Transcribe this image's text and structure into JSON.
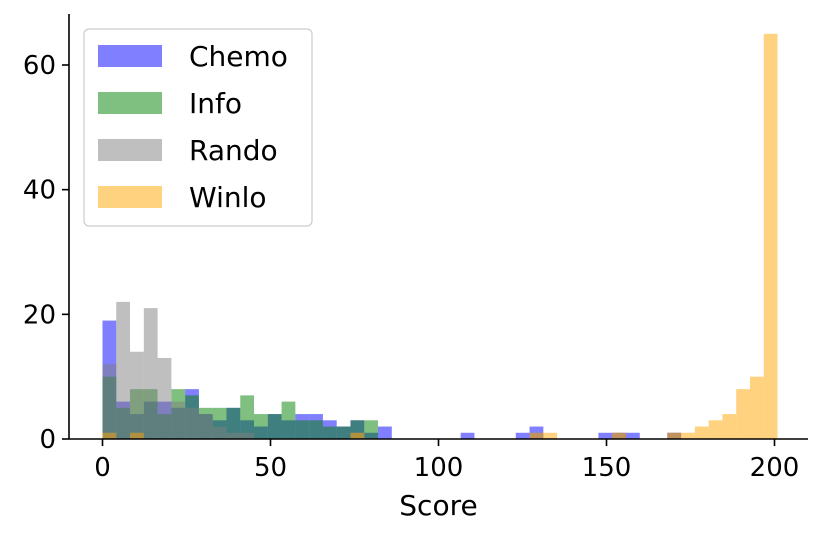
{
  "chart_data": {
    "type": "bar",
    "histogram": true,
    "bin_width": 4.1,
    "bin_start": 0,
    "xlabel": "Score",
    "ylabel": "",
    "title": "",
    "xlim": [
      -10,
      210
    ],
    "ylim": [
      0,
      68
    ],
    "xticks": [
      0,
      50,
      100,
      150,
      200
    ],
    "yticks": [
      0,
      20,
      40,
      60
    ],
    "legend_position": "top-left",
    "grid": false,
    "series": [
      {
        "name": "Chemo",
        "color": "#0000ff",
        "opacity": 0.5,
        "bins": [
          {
            "x": 0,
            "count": 19
          },
          {
            "x": 4.1,
            "count": 6
          },
          {
            "x": 8.2,
            "count": 4
          },
          {
            "x": 12.3,
            "count": 6
          },
          {
            "x": 16.4,
            "count": 6
          },
          {
            "x": 20.5,
            "count": 5
          },
          {
            "x": 24.6,
            "count": 8
          },
          {
            "x": 28.7,
            "count": 4
          },
          {
            "x": 32.8,
            "count": 3
          },
          {
            "x": 36.9,
            "count": 5
          },
          {
            "x": 41,
            "count": 3
          },
          {
            "x": 45.1,
            "count": 2
          },
          {
            "x": 49.2,
            "count": 4
          },
          {
            "x": 53.3,
            "count": 3
          },
          {
            "x": 57.4,
            "count": 4
          },
          {
            "x": 61.5,
            "count": 4
          },
          {
            "x": 65.6,
            "count": 3
          },
          {
            "x": 69.7,
            "count": 2
          },
          {
            "x": 73.8,
            "count": 3
          },
          {
            "x": 77.9,
            "count": 1
          },
          {
            "x": 82,
            "count": 2
          },
          {
            "x": 106.6,
            "count": 1
          },
          {
            "x": 123,
            "count": 1
          },
          {
            "x": 127.1,
            "count": 2
          },
          {
            "x": 147.6,
            "count": 1
          },
          {
            "x": 151.7,
            "count": 1
          },
          {
            "x": 155.8,
            "count": 1
          },
          {
            "x": 168.1,
            "count": 1
          }
        ]
      },
      {
        "name": "Info",
        "color": "#008000",
        "opacity": 0.5,
        "bins": [
          {
            "x": 0,
            "count": 10
          },
          {
            "x": 4.1,
            "count": 5
          },
          {
            "x": 8.2,
            "count": 8
          },
          {
            "x": 12.3,
            "count": 8
          },
          {
            "x": 16.4,
            "count": 4
          },
          {
            "x": 20.5,
            "count": 8
          },
          {
            "x": 24.6,
            "count": 7
          },
          {
            "x": 28.7,
            "count": 5
          },
          {
            "x": 32.8,
            "count": 5
          },
          {
            "x": 36.9,
            "count": 5
          },
          {
            "x": 41,
            "count": 7
          },
          {
            "x": 45.1,
            "count": 4
          },
          {
            "x": 49.2,
            "count": 4
          },
          {
            "x": 53.3,
            "count": 6
          },
          {
            "x": 57.4,
            "count": 3
          },
          {
            "x": 61.5,
            "count": 3
          },
          {
            "x": 65.6,
            "count": 2
          },
          {
            "x": 69.7,
            "count": 2
          },
          {
            "x": 73.8,
            "count": 3
          },
          {
            "x": 77.9,
            "count": 3
          }
        ]
      },
      {
        "name": "Rando",
        "color": "#808080",
        "opacity": 0.5,
        "bins": [
          {
            "x": 0,
            "count": 12
          },
          {
            "x": 4.1,
            "count": 22
          },
          {
            "x": 8.2,
            "count": 14
          },
          {
            "x": 12.3,
            "count": 21
          },
          {
            "x": 16.4,
            "count": 13
          },
          {
            "x": 20.5,
            "count": 6
          },
          {
            "x": 24.6,
            "count": 5
          },
          {
            "x": 28.7,
            "count": 4
          },
          {
            "x": 32.8,
            "count": 2
          },
          {
            "x": 36.9,
            "count": 1
          },
          {
            "x": 41,
            "count": 1
          },
          {
            "x": 73.8,
            "count": 1
          },
          {
            "x": 127.1,
            "count": 1
          },
          {
            "x": 151.7,
            "count": 1
          },
          {
            "x": 168.1,
            "count": 1
          }
        ]
      },
      {
        "name": "Winlo",
        "color": "#ffa500",
        "opacity": 0.5,
        "bins": [
          {
            "x": 0,
            "count": 1
          },
          {
            "x": 8.2,
            "count": 1
          },
          {
            "x": 73.8,
            "count": 1
          },
          {
            "x": 127.1,
            "count": 1
          },
          {
            "x": 131.2,
            "count": 1
          },
          {
            "x": 151.7,
            "count": 1
          },
          {
            "x": 168.1,
            "count": 1
          },
          {
            "x": 172.2,
            "count": 1
          },
          {
            "x": 176.3,
            "count": 2
          },
          {
            "x": 180.4,
            "count": 3
          },
          {
            "x": 184.5,
            "count": 4
          },
          {
            "x": 188.6,
            "count": 8
          },
          {
            "x": 192.7,
            "count": 10
          },
          {
            "x": 196.8,
            "count": 65
          }
        ]
      }
    ]
  }
}
